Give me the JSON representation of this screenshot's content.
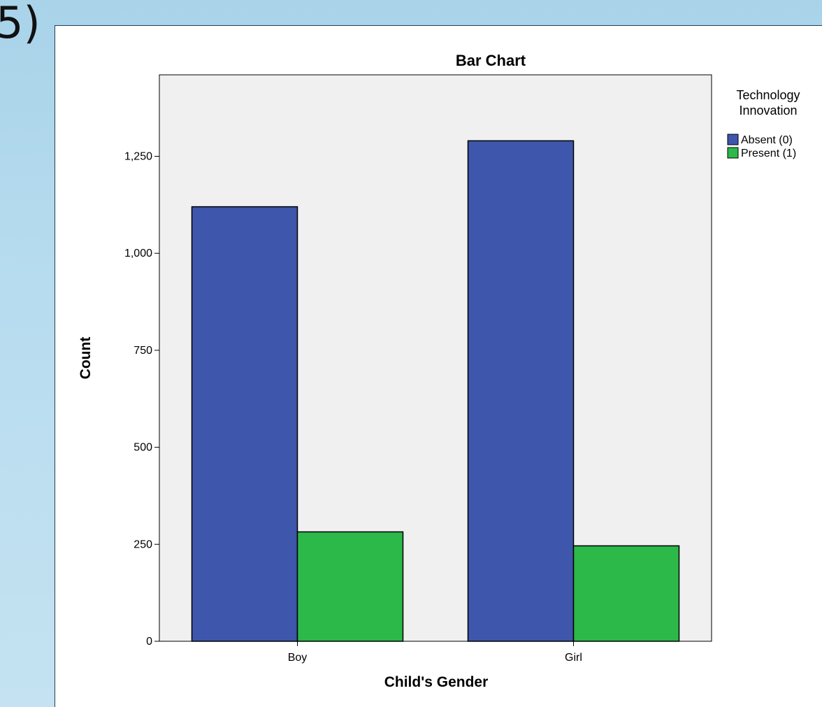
{
  "slide": {
    "fragment_text": "5)"
  },
  "chart_data": {
    "type": "bar",
    "title": "Bar Chart",
    "xlabel": "Child's Gender",
    "ylabel": "Count",
    "categories": [
      "Boy",
      "Girl"
    ],
    "series": [
      {
        "name": "Absent (0)",
        "values": [
          1120,
          1290
        ],
        "color": "#3e56ab"
      },
      {
        "name": "Present (1)",
        "values": [
          282,
          246
        ],
        "color": "#2db84a"
      }
    ],
    "ylim": [
      0,
      1460
    ],
    "yticks": [
      0,
      250,
      500,
      750,
      1000,
      1250
    ],
    "ytick_labels": [
      "0",
      "250",
      "500",
      "750",
      "1,000",
      "1,250"
    ],
    "legend": {
      "title_lines": [
        "Technology",
        "Innovation"
      ],
      "placement": "top-right-outside"
    },
    "plot_background": "#f0f0f0",
    "grid": false
  }
}
